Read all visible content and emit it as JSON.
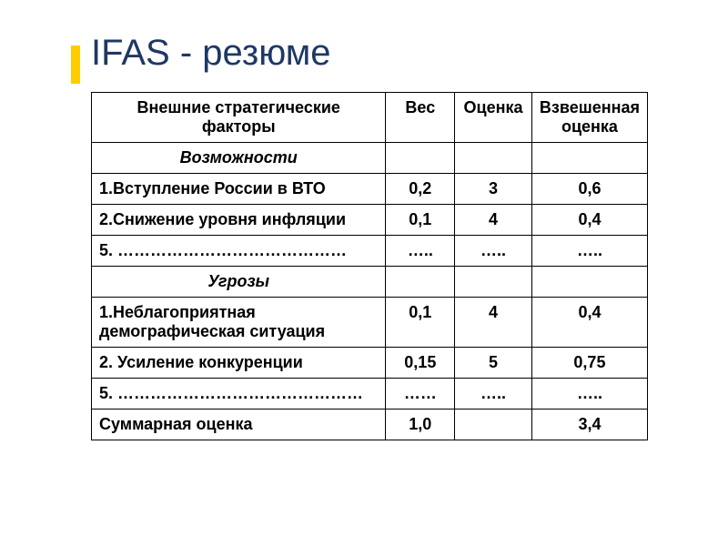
{
  "accent_color": "#ffcc00",
  "title_color": "#1f3864",
  "title": "IFAS - резюме",
  "table": {
    "headers": [
      "Внешние стратегические факторы",
      "Вес",
      "Оценка",
      "Взвешенная оценка"
    ],
    "section1": "Возможности",
    "section2": "Угрозы",
    "rows1": [
      {
        "factor": "1.Вступление России в ВТО",
        "weight": "0,2",
        "score": "3",
        "weighted": "0,6"
      },
      {
        "factor": "2.Снижение уровня инфляции",
        "weight": "0,1",
        "score": "4",
        "weighted": "0,4"
      },
      {
        "factor": "5. ……………………………………",
        "weight": "…..",
        "score": "…..",
        "weighted": "….."
      }
    ],
    "rows2": [
      {
        "factor": "1.Неблагоприятная демографическая ситуация",
        "weight": "0,1",
        "score": "4",
        "weighted": "0,4"
      },
      {
        "factor": "2. Усиление конкуренции",
        "weight": "0,15",
        "score": "5",
        "weighted": "0,75"
      },
      {
        "factor": "5. ………………………………………",
        "weight": "……",
        "score": "…..",
        "weighted": "….."
      }
    ],
    "summary": {
      "factor": "Суммарная оценка",
      "weight": "1,0",
      "score": "",
      "weighted": "3,4"
    }
  }
}
